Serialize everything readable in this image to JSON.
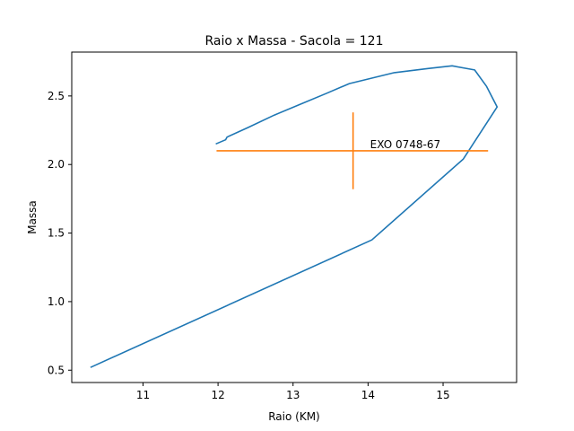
{
  "chart_data": {
    "type": "line",
    "title": "Raio x Massa - Sacola = 121",
    "xlabel": "Raio (KM)",
    "ylabel": "Massa",
    "xlim": [
      10.05,
      15.98
    ],
    "ylim": [
      0.41,
      2.82
    ],
    "xticks": [
      {
        "value": 11,
        "label": "11"
      },
      {
        "value": 12,
        "label": "12"
      },
      {
        "value": 13,
        "label": "13"
      },
      {
        "value": 14,
        "label": "14"
      },
      {
        "value": 15,
        "label": "15"
      }
    ],
    "yticks": [
      {
        "value": 0.5,
        "label": "0.5"
      },
      {
        "value": 1.0,
        "label": "1.0"
      },
      {
        "value": 1.5,
        "label": "1.5"
      },
      {
        "value": 2.0,
        "label": "2.0"
      },
      {
        "value": 2.5,
        "label": "2.5"
      }
    ],
    "grid": false,
    "series": [
      {
        "color": "#1f77b4",
        "x": [
          10.3,
          14.05,
          15.27,
          15.72,
          15.58,
          15.42,
          15.12,
          14.8,
          14.35,
          14.05,
          13.75,
          13.45,
          13.1,
          12.75,
          12.4,
          12.12,
          12.1,
          11.97
        ],
        "y": [
          0.52,
          1.45,
          2.04,
          2.42,
          2.57,
          2.69,
          2.72,
          2.7,
          2.67,
          2.63,
          2.59,
          2.52,
          2.44,
          2.36,
          2.27,
          2.2,
          2.18,
          2.15
        ]
      }
    ],
    "annotations": [
      {
        "label": "EXO 0748-67",
        "color": "#ff7f0e",
        "x": 13.8,
        "y": 2.1,
        "x_range": [
          11.98,
          15.6
        ],
        "y_range": [
          1.82,
          2.38
        ]
      }
    ]
  }
}
